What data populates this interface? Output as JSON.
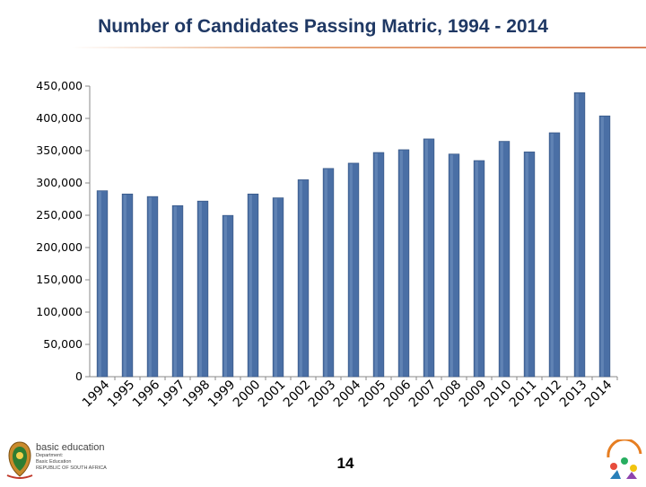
{
  "slide": {
    "page_number": "14"
  },
  "logo": {
    "department_name": "basic education",
    "line1": "Department:",
    "line2": "Basic Education",
    "line3": "REPUBLIC OF SOUTH AFRICA"
  },
  "colors": {
    "bar": "#4a6fa5",
    "bar_edge": "#2f4f7f",
    "title": "#1f3864"
  },
  "chart_data": {
    "type": "bar",
    "title": "Number of Candidates Passing Matric, 1994 - 2014",
    "xlabel": "",
    "ylabel": "",
    "categories": [
      "1994",
      "1995",
      "1996",
      "1997",
      "1998",
      "1999",
      "2000",
      "2001",
      "2002",
      "2003",
      "2004",
      "2005",
      "2006",
      "2007",
      "2008",
      "2009",
      "2010",
      "2011",
      "2012",
      "2013",
      "2014"
    ],
    "values": [
      288000,
      283000,
      279000,
      265000,
      272000,
      249800,
      283000,
      277000,
      305000,
      322500,
      330700,
      347200,
      351500,
      368200,
      344800,
      334700,
      364500,
      348100,
      377800,
      439800,
      403900
    ],
    "ylim": [
      0,
      450000
    ],
    "yticks": [
      0,
      50000,
      100000,
      150000,
      200000,
      250000,
      300000,
      350000,
      400000,
      450000
    ],
    "ytick_labels": [
      "0",
      "50,000",
      "100,000",
      "150,000",
      "200,000",
      "250,000",
      "300,000",
      "350,000",
      "400,000",
      "450,000"
    ],
    "grid": false,
    "legend": "none"
  }
}
